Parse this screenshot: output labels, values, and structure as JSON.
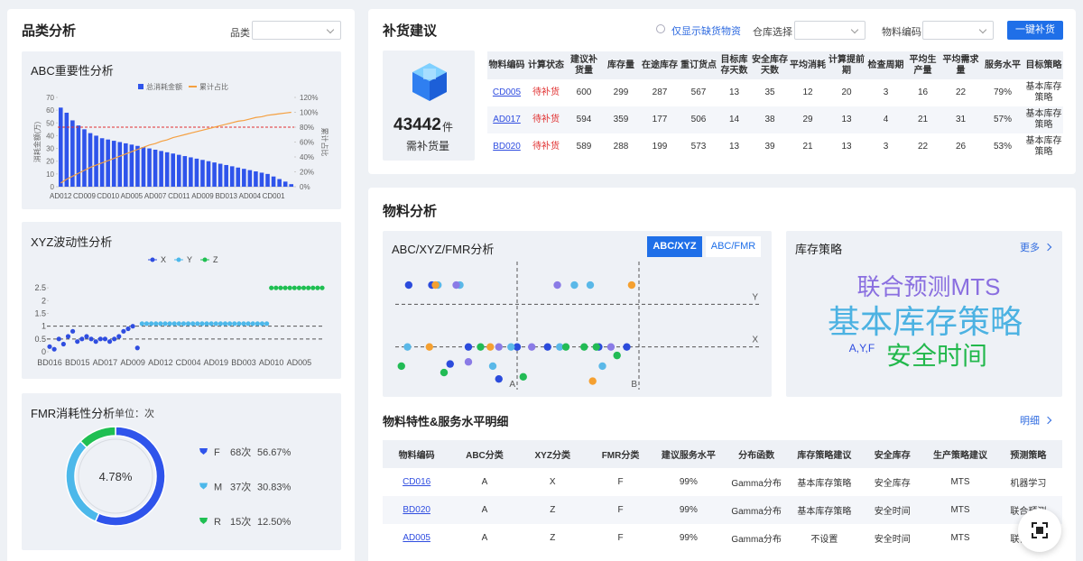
{
  "category_panel": {
    "title": "品类分析",
    "filter_label": "品类"
  },
  "replenishment": {
    "title": "补货建议",
    "only_shortage": "仅显示缺货物资",
    "warehouse_label": "仓库选择",
    "material_label": "物料编码",
    "button": "一键补货",
    "kpi": {
      "value": 43442,
      "unit": "件",
      "label": "需补货量"
    },
    "table": {
      "headers": [
        "物料编码",
        "计算状态",
        "建议补货量",
        "库存量",
        "在途库存",
        "重订货点",
        "目标库存天数",
        "安全库存天数",
        "平均消耗",
        "计算提前期",
        "检查周期",
        "平均生产量",
        "平均需求量",
        "服务水平",
        "目标策略"
      ],
      "rows": [
        [
          "CD005",
          "待补货",
          "600",
          "299",
          "287",
          "567",
          "13",
          "35",
          "12",
          "20",
          "3",
          "16",
          "22",
          "79%",
          "基本库存策略"
        ],
        [
          "AD017",
          "待补货",
          "594",
          "359",
          "177",
          "506",
          "14",
          "38",
          "29",
          "13",
          "4",
          "21",
          "31",
          "57%",
          "基本库存策略"
        ],
        [
          "BD020",
          "待补货",
          "589",
          "288",
          "199",
          "573",
          "13",
          "39",
          "21",
          "13",
          "3",
          "22",
          "26",
          "53%",
          "基本库存策略"
        ]
      ]
    }
  },
  "material_analysis": {
    "title": "物料分析",
    "strategy": {
      "title": "库存策略",
      "more": "更多",
      "words": [
        {
          "text": "联合预测MTS",
          "color": "#8a6fe0"
        },
        {
          "text": "基本库存策略",
          "color": "#4cb2e2"
        },
        {
          "text": "A,Y,F",
          "color": "#2f4de0"
        },
        {
          "text": "安全时间",
          "color": "#22b84c"
        }
      ]
    },
    "detail": {
      "title": "物料特性&服务水平明细",
      "more": "明细",
      "table": {
        "headers": [
          "物料编码",
          "ABC分类",
          "XYZ分类",
          "FMR分类",
          "建议服务水平",
          "分布函数",
          "库存策略建议",
          "安全库存",
          "生产策略建议",
          "预测策略"
        ],
        "rows": [
          [
            "CD016",
            "A",
            "X",
            "F",
            "99%",
            "Gamma分布",
            "基本库存策略",
            "安全库存",
            "MTS",
            "机器学习"
          ],
          [
            "BD020",
            "A",
            "Z",
            "F",
            "99%",
            "Gamma分布",
            "基本库存策略",
            "安全时间",
            "MTS",
            "联合预测"
          ],
          [
            "AD005",
            "A",
            "Z",
            "F",
            "99%",
            "Gamma分布",
            "不设置",
            "安全时间",
            "MTS",
            "联合预测"
          ]
        ]
      }
    }
  },
  "chart_data": [
    {
      "type": "bar",
      "title": "ABC重要性分析",
      "ylabel": "消耗金额(万)",
      "y2label": "累计占比",
      "categories": [
        "AD012",
        null,
        null,
        null,
        "CD009",
        null,
        null,
        null,
        "CD010",
        null,
        null,
        null,
        "AD005",
        null,
        null,
        null,
        "AD007",
        null,
        null,
        null,
        "CD011",
        null,
        null,
        null,
        "AD009",
        null,
        null,
        null,
        "BD013",
        null,
        null,
        null,
        "AD004",
        null,
        null,
        null,
        "CD001",
        null,
        null,
        null
      ],
      "series": [
        {
          "name": "总消耗金额",
          "color": "#2f54eb",
          "values": [
            62,
            58,
            52,
            48,
            45,
            42,
            40,
            38,
            37,
            36,
            35,
            34,
            33,
            32,
            31,
            30,
            29,
            28,
            27,
            26,
            25,
            24,
            23,
            22,
            21,
            20,
            19,
            18,
            17,
            16,
            15,
            14,
            13,
            12,
            11,
            10,
            8,
            6,
            4,
            2
          ]
        },
        {
          "name": "累计占比",
          "color": "#f5a040",
          "axis": "y2",
          "values": [
            5,
            10,
            14,
            18,
            22,
            26,
            29,
            32,
            35,
            38,
            41,
            44,
            47,
            50,
            53,
            56,
            58,
            61,
            63,
            66,
            68,
            70,
            72,
            74,
            76,
            78,
            80,
            82,
            84,
            86,
            88,
            89,
            91,
            93,
            94,
            96,
            97,
            98,
            99,
            100
          ]
        }
      ],
      "ylim": [
        0,
        70
      ],
      "yticks": [
        0,
        10,
        20,
        30,
        40,
        50,
        60,
        70
      ],
      "y2lim": [
        0,
        120
      ],
      "y2ticks": [
        {
          "value": 0,
          "label": "0%"
        },
        {
          "value": 20,
          "label": "20%"
        },
        {
          "value": 40,
          "label": "40%"
        },
        {
          "value": 60,
          "label": "60%"
        },
        {
          "value": 80,
          "label": "80%"
        },
        {
          "value": 100,
          "label": "100%"
        },
        {
          "value": 120,
          "label": "120%"
        }
      ],
      "threshold": 80,
      "threshold_color": "#e03030",
      "grid": false,
      "legend": "top"
    },
    {
      "type": "scatter",
      "title": "XYZ波动性分析",
      "categories": [
        "BD016",
        null,
        null,
        null,
        null,
        null,
        "BD015",
        null,
        null,
        null,
        null,
        null,
        "AD017",
        null,
        null,
        null,
        null,
        null,
        "AD009",
        null,
        null,
        null,
        null,
        null,
        "AD012",
        null,
        null,
        null,
        null,
        null,
        "CD004",
        null,
        null,
        null,
        null,
        null,
        "AD019",
        null,
        null,
        null,
        null,
        null,
        "BD003",
        null,
        null,
        null,
        null,
        null,
        "AD010",
        null,
        null,
        null,
        null,
        null,
        "AD005",
        null,
        null,
        null,
        null,
        null
      ],
      "series": [
        {
          "name": "X",
          "color": "#2f4de0",
          "values": [
            0.2,
            0.1,
            0.5,
            0.3,
            0.6,
            0.8,
            0.4,
            0.5,
            0.6,
            0.5,
            0.4,
            0.5,
            0.5,
            0.4,
            0.5,
            0.6,
            0.8,
            0.9,
            1.0,
            0.15,
            null,
            null,
            null,
            null,
            null,
            null,
            null,
            null,
            null,
            null,
            null,
            null,
            null,
            null,
            null,
            null,
            null,
            null,
            null,
            null,
            null,
            null,
            null,
            null,
            null,
            null,
            null,
            null,
            null,
            null,
            null,
            null,
            null,
            null,
            null,
            null,
            null,
            null,
            null,
            null
          ]
        },
        {
          "name": "Y",
          "color": "#4cb8ea",
          "values": [
            null,
            null,
            null,
            null,
            null,
            null,
            null,
            null,
            null,
            null,
            null,
            null,
            null,
            null,
            null,
            null,
            null,
            null,
            null,
            null,
            1.1,
            1.1,
            1.1,
            1.1,
            1.1,
            1.1,
            1.1,
            1.1,
            1.1,
            1.1,
            1.1,
            1.1,
            1.1,
            1.1,
            1.1,
            1.1,
            1.1,
            1.1,
            1.1,
            1.1,
            1.1,
            1.1,
            1.1,
            1.1,
            1.1,
            1.1,
            1.1,
            1.1,
            null,
            null,
            null,
            null,
            null,
            null,
            null,
            null,
            null,
            null,
            null,
            null
          ]
        },
        {
          "name": "Z",
          "color": "#1fbf52",
          "values": [
            null,
            null,
            null,
            null,
            null,
            null,
            null,
            null,
            null,
            null,
            null,
            null,
            null,
            null,
            null,
            null,
            null,
            null,
            null,
            null,
            null,
            null,
            null,
            null,
            null,
            null,
            null,
            null,
            null,
            null,
            null,
            null,
            null,
            null,
            null,
            null,
            null,
            null,
            null,
            null,
            null,
            null,
            null,
            null,
            null,
            null,
            null,
            null,
            2.5,
            2.5,
            2.5,
            2.5,
            2.5,
            2.5,
            2.5,
            2.5,
            2.5,
            2.5,
            2.5,
            2.5
          ]
        }
      ],
      "ylim": [
        0,
        3
      ],
      "yticks": [
        0,
        0.5,
        1,
        1.5,
        2,
        2.5
      ],
      "reference_lines": [
        1,
        0.5
      ],
      "legend": "top"
    },
    {
      "type": "pie",
      "title": "FMR消耗性分析",
      "subtitle": "单位：次",
      "center_label": "4.78%",
      "categories": [
        "F",
        "M",
        "R"
      ],
      "values": [
        68,
        37,
        15
      ],
      "value_labels": [
        "68次",
        "37次",
        "15次"
      ],
      "shares": [
        56.67,
        30.83,
        12.5
      ],
      "share_labels": [
        "56.67%",
        "30.83%",
        "12.50%"
      ],
      "colors": [
        "#2f54eb",
        "#4cb8ea",
        "#1fbf52"
      ],
      "donut": true,
      "legend": "right"
    },
    {
      "type": "scatter",
      "title": "ABC/XYZ/FMR分析",
      "tabs": [
        "ABC/XYZ",
        "ABC/FMR"
      ],
      "active_tab": 0,
      "xlim": [
        0,
        3
      ],
      "ylim": [
        0,
        3
      ],
      "x_lines": [
        {
          "value": 1,
          "label": "A"
        },
        {
          "value": 2,
          "label": "B"
        }
      ],
      "y_lines": [
        {
          "value": 1,
          "label": "X"
        },
        {
          "value": 2,
          "label": "Y"
        }
      ],
      "series": [
        {
          "color": "#2b4bdc",
          "x": [
            0.11,
            0.3,
            0.6,
            1.0,
            1.25,
            1.9,
            0.45,
            0.85,
            1.67
          ],
          "values": [
            2.45,
            2.45,
            1,
            1,
            1,
            1,
            0.6,
            0.25,
            1
          ]
        },
        {
          "color": "#5ab8e8",
          "x": [
            0.35,
            0.53,
            1.47,
            1.6,
            0.8,
            1.35,
            0.95,
            1.7,
            0.1
          ],
          "values": [
            2.45,
            2.45,
            2.45,
            2.45,
            0.55,
            1,
            1,
            0.55,
            1
          ]
        },
        {
          "color": "#22bb55",
          "x": [
            0.05,
            0.7,
            1.55,
            1.65,
            0.4,
            1.05,
            1.82,
            1.4
          ],
          "values": [
            0.55,
            1,
            1,
            1,
            0.4,
            0.3,
            0.8,
            1
          ]
        },
        {
          "color": "#f5a030",
          "x": [
            0.33,
            1.94,
            0.78,
            0.28,
            1.62
          ],
          "values": [
            2.45,
            2.45,
            1,
            1,
            0.2
          ]
        },
        {
          "color": "#8a7be6",
          "x": [
            0.5,
            1.33,
            0.85,
            1.12,
            1.77,
            0.6
          ],
          "values": [
            2.45,
            2.45,
            1,
            1,
            1,
            0.65
          ]
        }
      ]
    }
  ]
}
